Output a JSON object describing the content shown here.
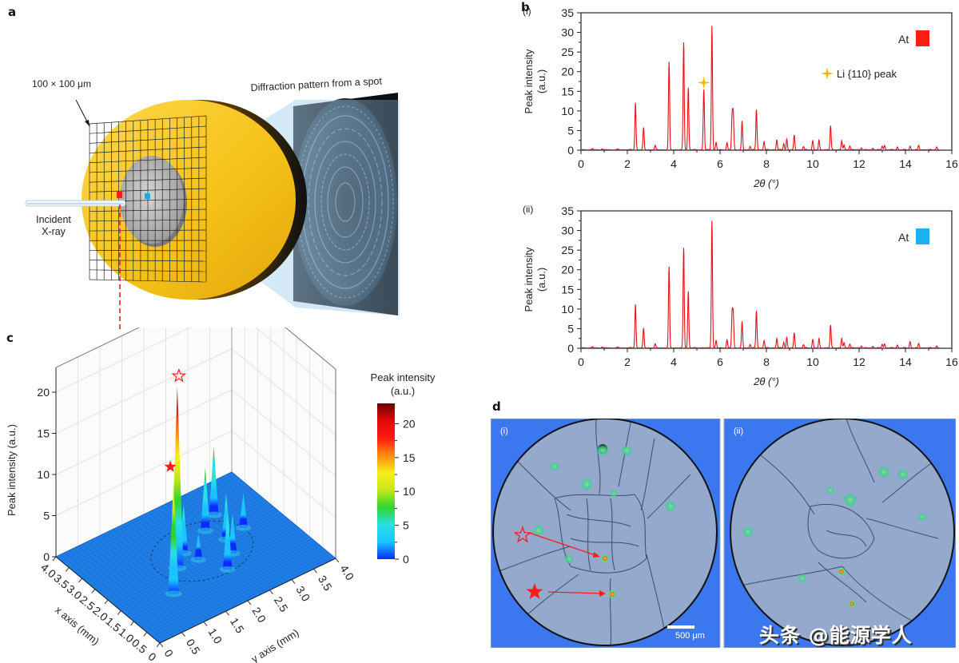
{
  "figure": {
    "panels": {
      "a": {
        "letter": "a",
        "grid_label": "100 × 100 μm",
        "beam_label_line1": "Incident",
        "beam_label_line2": "X-ray",
        "detector_label": "Diffraction pattern from a spot",
        "marker_colors": {
          "red_spot": "#ff1a1a",
          "blue_spot": "#19a8e8"
        }
      },
      "b": {
        "letter": "b"
      },
      "c": {
        "letter": "c"
      },
      "d": {
        "letter": "d",
        "sub_i": "(i)",
        "sub_ii": "(ii)",
        "scale_bar_label": "500 μm"
      }
    },
    "watermark": "头条 @能源学人"
  },
  "chart_data": [
    {
      "id": "b-i",
      "type": "line",
      "subpanel": "(i)",
      "title": "",
      "xlabel": "2θ (°)",
      "ylabel": "Peak intensity (a.u.)",
      "xlim": [
        0,
        16
      ],
      "ylim": [
        0,
        35
      ],
      "xticks": [
        0,
        2,
        4,
        6,
        8,
        10,
        12,
        14,
        16
      ],
      "yticks": [
        0,
        5,
        10,
        15,
        20,
        25,
        30,
        35
      ],
      "legend": {
        "label": "At",
        "swatch_color": "#ff1a1a",
        "position": "top-right"
      },
      "annotation": {
        "label": "Li {110} peak",
        "marker": "four-point-star",
        "color": "#f5b400",
        "x": 5.3,
        "y": 17.2
      },
      "line_color": "#e3101a",
      "peaks": [
        [
          0.5,
          0.3
        ],
        [
          0.9,
          0.2
        ],
        [
          1.6,
          0.15
        ],
        [
          2.35,
          12.0
        ],
        [
          2.7,
          5.6
        ],
        [
          3.2,
          1.1
        ],
        [
          3.8,
          22.3
        ],
        [
          4.43,
          27.3
        ],
        [
          4.63,
          15.8
        ],
        [
          5.3,
          15.3
        ],
        [
          5.65,
          31.6
        ],
        [
          5.83,
          1.8
        ],
        [
          6.3,
          1.8
        ],
        [
          6.52,
          8.6
        ],
        [
          6.57,
          8.9
        ],
        [
          6.95,
          7.3
        ],
        [
          7.3,
          0.9
        ],
        [
          7.57,
          10.2
        ],
        [
          7.9,
          2.1
        ],
        [
          8.45,
          2.6
        ],
        [
          8.75,
          1.6
        ],
        [
          8.88,
          2.7
        ],
        [
          9.2,
          3.7
        ],
        [
          9.6,
          0.8
        ],
        [
          10.0,
          2.3
        ],
        [
          10.27,
          2.4
        ],
        [
          10.77,
          6.1
        ],
        [
          11.25,
          2.3
        ],
        [
          11.35,
          1.2
        ],
        [
          11.6,
          1.0
        ],
        [
          12.1,
          0.5
        ],
        [
          12.6,
          0.4
        ],
        [
          13.0,
          0.9
        ],
        [
          13.1,
          1.1
        ],
        [
          13.65,
          0.7
        ],
        [
          14.2,
          0.9
        ],
        [
          14.57,
          1.1
        ],
        [
          15.35,
          0.7
        ]
      ]
    },
    {
      "id": "b-ii",
      "type": "line",
      "subpanel": "(ii)",
      "title": "",
      "xlabel": "2θ (°)",
      "ylabel": "Peak intensity (a.u.)",
      "xlim": [
        0,
        16
      ],
      "ylim": [
        0,
        35
      ],
      "xticks": [
        0,
        2,
        4,
        6,
        8,
        10,
        12,
        14,
        16
      ],
      "yticks": [
        0,
        5,
        10,
        15,
        20,
        25,
        30,
        35
      ],
      "legend": {
        "label": "At",
        "swatch_color": "#19b2ec",
        "position": "top-right"
      },
      "line_color": "#e3101a",
      "peaks": [
        [
          0.5,
          0.3
        ],
        [
          0.9,
          0.2
        ],
        [
          1.6,
          0.15
        ],
        [
          2.35,
          11.1
        ],
        [
          2.7,
          5.0
        ],
        [
          3.2,
          1.0
        ],
        [
          3.8,
          20.6
        ],
        [
          4.43,
          25.5
        ],
        [
          4.63,
          14.4
        ],
        [
          5.65,
          32.4
        ],
        [
          5.83,
          1.8
        ],
        [
          6.3,
          2.0
        ],
        [
          6.52,
          8.6
        ],
        [
          6.57,
          8.3
        ],
        [
          6.95,
          6.7
        ],
        [
          7.3,
          0.9
        ],
        [
          7.57,
          9.4
        ],
        [
          7.9,
          1.9
        ],
        [
          8.45,
          2.4
        ],
        [
          8.75,
          1.5
        ],
        [
          8.88,
          2.6
        ],
        [
          9.2,
          3.8
        ],
        [
          9.6,
          0.8
        ],
        [
          10.0,
          2.1
        ],
        [
          10.27,
          2.3
        ],
        [
          10.77,
          5.8
        ],
        [
          11.25,
          2.4
        ],
        [
          11.35,
          1.3
        ],
        [
          11.6,
          1.0
        ],
        [
          12.1,
          0.5
        ],
        [
          12.6,
          0.4
        ],
        [
          13.0,
          0.9
        ],
        [
          13.1,
          1.0
        ],
        [
          13.65,
          0.7
        ],
        [
          14.2,
          1.6
        ],
        [
          14.57,
          1.1
        ],
        [
          15.35,
          0.5
        ]
      ]
    },
    {
      "id": "c",
      "type": "surface3d",
      "title": "",
      "xlabel": "x axis (mm)",
      "ylabel": "y axis (mm)",
      "zlabel": "Peak intensity (a.u.)",
      "xticks": [
        "0",
        "0.5",
        "1.0",
        "1.5",
        "2.0",
        "2.5",
        "3.0",
        "3.5",
        "4.0"
      ],
      "yticks": [
        "0",
        "0.5",
        "1.0",
        "1.5",
        "2.0",
        "2.5",
        "3.0",
        "3.5",
        "4.0"
      ],
      "zticks": [
        0,
        5,
        10,
        15,
        20
      ],
      "zlim": [
        0,
        23
      ],
      "colorbar": {
        "title_line1": "Peak intensity",
        "title_line2": "(a.u.)",
        "ticks": [
          0,
          5,
          10,
          15,
          20
        ],
        "range": [
          0,
          23
        ],
        "colormap": [
          "#0a2cff",
          "#19c4ff",
          "#2ae0e0",
          "#2fd52f",
          "#c8e619",
          "#f6ee1a",
          "#ff8a10",
          "#ff1a10",
          "#e00b0b",
          "#6b0000"
        ]
      },
      "surface_base_color": "#1f7fe8",
      "spikes": [
        {
          "x": 1.25,
          "y": 1.05,
          "z": 13.5,
          "marker": "filled-star"
        },
        {
          "x": 1.95,
          "y": 1.55,
          "z": 22.0,
          "marker": "open-star"
        },
        {
          "x": 2.3,
          "y": 1.9,
          "z": 6.0
        },
        {
          "x": 1.2,
          "y": 2.25,
          "z": 7.2
        },
        {
          "x": 2.65,
          "y": 2.6,
          "z": 7.7
        },
        {
          "x": 3.0,
          "y": 3.0,
          "z": 8.3
        },
        {
          "x": 2.1,
          "y": 2.75,
          "z": 5.6
        },
        {
          "x": 1.6,
          "y": 2.6,
          "z": 4.8
        },
        {
          "x": 2.2,
          "y": 3.2,
          "z": 4.2
        },
        {
          "x": 1.9,
          "y": 2.0,
          "z": 3.2
        }
      ],
      "marker_color": "#ff1a1a"
    }
  ]
}
